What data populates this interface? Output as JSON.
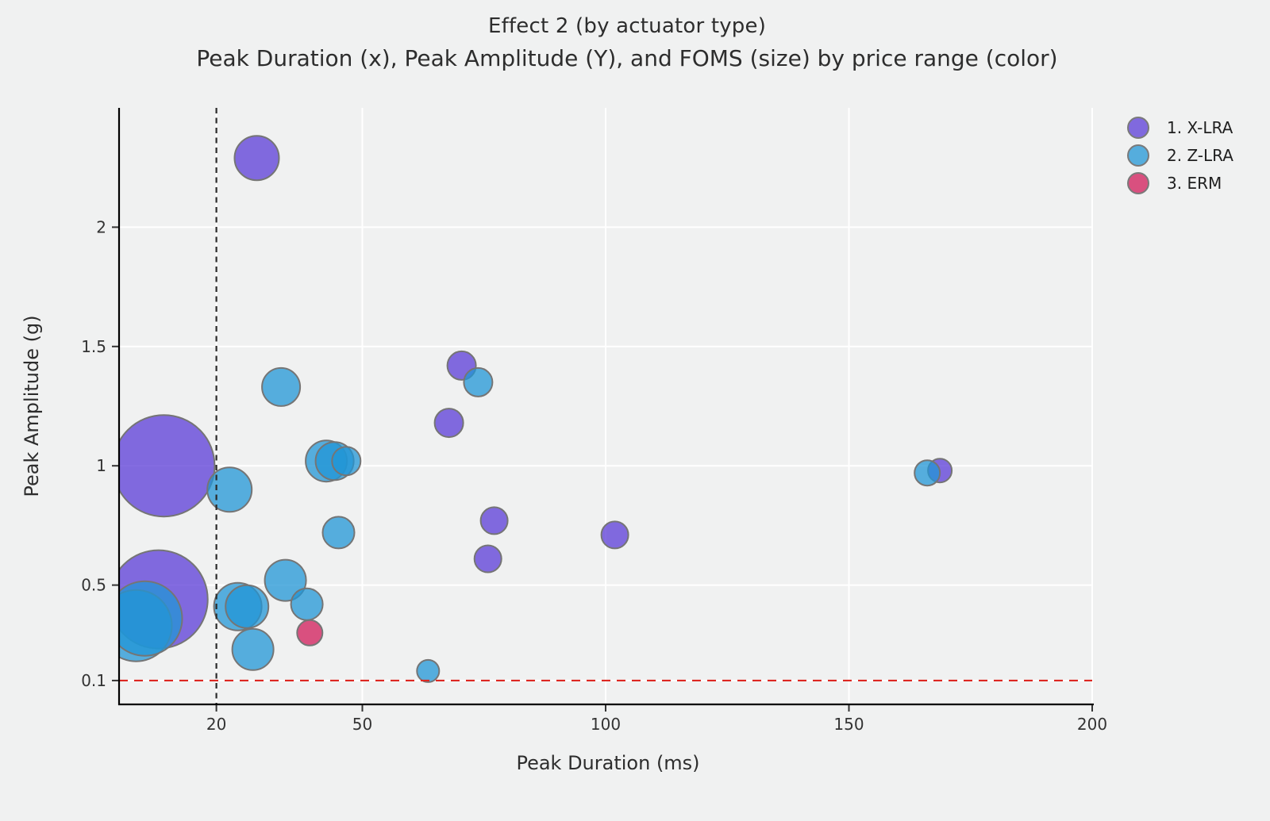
{
  "chart_data": {
    "type": "scatter",
    "variant": "bubble",
    "title": "Effect 2 (by actuator type)",
    "subtitle": "Peak Duration (x), Peak Amplitude (Y), and FOMS (size) by price range (color)",
    "xlabel": "Peak Duration (ms)",
    "ylabel": "Peak Amplitude (g)",
    "size_encoding": "FOMS (bubble radius in px)",
    "xlim": [
      0,
      200
    ],
    "ylim": [
      0,
      2.5
    ],
    "x_ticks": [
      {
        "value": 20,
        "label": "20"
      },
      {
        "value": 50,
        "label": "50"
      },
      {
        "value": 100,
        "label": "100"
      },
      {
        "value": 150,
        "label": "150"
      },
      {
        "value": 200,
        "label": "200"
      }
    ],
    "y_ticks": [
      {
        "value": 0.1,
        "label": "0.1"
      },
      {
        "value": 0.5,
        "label": "0.5"
      },
      {
        "value": 1,
        "label": "1"
      },
      {
        "value": 1.5,
        "label": "1.5"
      },
      {
        "value": 2,
        "label": "2"
      }
    ],
    "grid": true,
    "background_color": "#f0f1f1",
    "gridline_color": "#ffffff",
    "axis_line_color": "#000000",
    "tick_label_color": "#333333",
    "bubble_stroke_color": "#757575",
    "bubble_fill_opacity": 0.75,
    "reference_lines": {
      "vline": {
        "x": 20,
        "style": "dashed",
        "color": "#2a2a2a"
      },
      "hline": {
        "y": 0.1,
        "style": "dashed",
        "color": "#dd2822"
      }
    },
    "legend": {
      "position": "top-right",
      "items": [
        {
          "label": "1. X-LRA",
          "color": "#5b3bd7"
        },
        {
          "label": "2. Z-LRA",
          "color": "#2196d6"
        },
        {
          "label": "3. ERM",
          "color": "#d11958"
        }
      ]
    },
    "series": [
      {
        "name": "1. X-LRA",
        "color": "#5b3bd7",
        "points": [
          {
            "x": 28.3,
            "y": 2.29,
            "r": 28
          },
          {
            "x": 70.4,
            "y": 1.42,
            "r": 18
          },
          {
            "x": 67.8,
            "y": 1.18,
            "r": 18
          },
          {
            "x": 9.2,
            "y": 1.0,
            "r": 64
          },
          {
            "x": 77.1,
            "y": 0.77,
            "r": 17
          },
          {
            "x": 75.8,
            "y": 0.61,
            "r": 17
          },
          {
            "x": 101.9,
            "y": 0.71,
            "r": 17
          },
          {
            "x": 8.1,
            "y": 0.44,
            "r": 62
          },
          {
            "x": 168.7,
            "y": 0.98,
            "r": 15
          }
        ]
      },
      {
        "name": "2. Z-LRA",
        "color": "#2196d6",
        "points": [
          {
            "x": 33.3,
            "y": 1.33,
            "r": 24
          },
          {
            "x": 73.8,
            "y": 1.35,
            "r": 18
          },
          {
            "x": 42.6,
            "y": 1.02,
            "r": 26
          },
          {
            "x": 44.3,
            "y": 1.02,
            "r": 24
          },
          {
            "x": 46.7,
            "y": 1.02,
            "r": 18
          },
          {
            "x": 22.7,
            "y": 0.9,
            "r": 28
          },
          {
            "x": 166.1,
            "y": 0.97,
            "r": 16
          },
          {
            "x": 45.1,
            "y": 0.72,
            "r": 20
          },
          {
            "x": 34.2,
            "y": 0.52,
            "r": 26
          },
          {
            "x": 3.5,
            "y": 0.33,
            "r": 45
          },
          {
            "x": 5.3,
            "y": 0.36,
            "r": 47
          },
          {
            "x": 24.4,
            "y": 0.41,
            "r": 30
          },
          {
            "x": 26.3,
            "y": 0.41,
            "r": 27
          },
          {
            "x": 38.6,
            "y": 0.42,
            "r": 20
          },
          {
            "x": 27.5,
            "y": 0.23,
            "r": 26
          },
          {
            "x": 63.5,
            "y": 0.14,
            "r": 14
          }
        ]
      },
      {
        "name": "3. ERM",
        "color": "#d11958",
        "points": [
          {
            "x": 39.2,
            "y": 0.3,
            "r": 16
          }
        ]
      }
    ]
  }
}
